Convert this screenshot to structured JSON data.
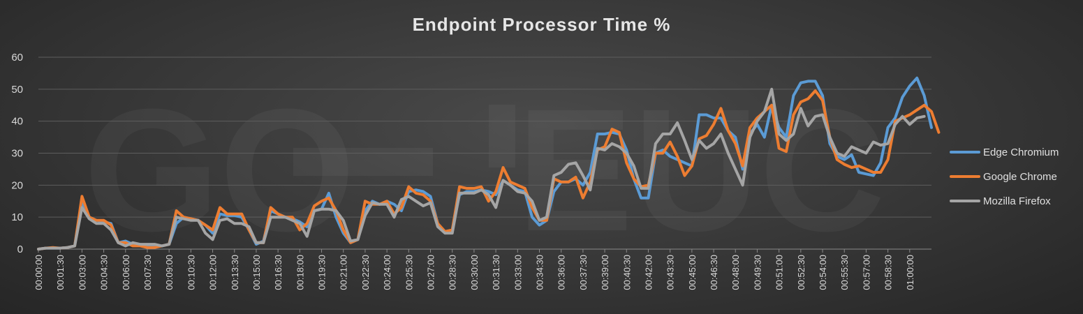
{
  "chart_data": {
    "type": "line",
    "title": "Endpoint Processor Time %",
    "xlabel": "",
    "ylabel": "",
    "ylim": [
      0,
      60
    ],
    "yticks": [
      0,
      10,
      20,
      30,
      40,
      50,
      60
    ],
    "grid": "horizontal",
    "legend_position": "right",
    "x_tick_labels": [
      "00:00:00",
      "00:01:30",
      "00:03:00",
      "00:04:30",
      "00:06:00",
      "00:07:30",
      "00:09:00",
      "00:10:30",
      "00:12:00",
      "00:13:30",
      "00:15:00",
      "00:16:30",
      "00:18:00",
      "00:19:30",
      "00:21:00",
      "00:22:30",
      "00:24:00",
      "00:25:30",
      "00:27:00",
      "00:28:30",
      "00:30:00",
      "00:31:30",
      "00:33:00",
      "00:34:30",
      "00:36:00",
      "00:37:30",
      "00:39:00",
      "00:40:30",
      "00:42:00",
      "00:43:30",
      "00:45:00",
      "00:46:30",
      "00:48:00",
      "00:49:30",
      "00:51:00",
      "00:52:30",
      "00:54:00",
      "00:55:30",
      "00:57:00",
      "00:58:30",
      "01:00:00"
    ],
    "x_interval_seconds": 30,
    "series": [
      {
        "name": "Edge Chromium",
        "color": "#5b9bd5",
        "values": [
          0,
          0.3,
          0.3,
          0.3,
          0.5,
          1,
          15,
          10,
          9,
          8.5,
          8,
          2,
          2.5,
          1.5,
          1.2,
          1,
          0.8,
          1,
          1.5,
          8,
          10,
          9.5,
          9,
          7.5,
          5,
          11,
          10.5,
          10.5,
          10,
          6,
          1.5,
          2.5,
          12,
          11,
          10,
          9.5,
          8.5,
          7,
          12,
          12.5,
          17.5,
          10,
          5,
          2,
          3,
          12,
          15,
          14,
          15,
          14,
          12,
          18,
          18.5,
          18,
          16.5,
          8,
          5,
          6,
          17,
          18,
          18,
          18.5,
          18,
          17,
          21.5,
          20,
          18.5,
          18,
          10,
          7.5,
          9,
          18,
          21,
          21,
          22,
          20,
          24,
          36,
          36,
          36.5,
          36,
          31,
          22,
          16,
          16,
          30,
          31,
          29,
          28,
          27,
          26,
          42,
          42,
          41,
          41,
          37,
          35,
          25,
          36,
          39,
          35,
          45,
          38,
          35,
          48,
          52,
          52.5,
          52.5,
          48,
          33,
          29,
          28,
          29.5,
          24,
          23.5,
          23,
          27,
          38,
          41,
          47.5,
          51,
          53.5,
          48,
          38
        ]
      },
      {
        "name": "Google Chrome",
        "color": "#ed7d31",
        "values": [
          0,
          0.3,
          0.5,
          0.3,
          0.5,
          1,
          16.5,
          10,
          9,
          9,
          7.5,
          2,
          2,
          1,
          1,
          0.5,
          0.5,
          1,
          1.5,
          12,
          10,
          9.5,
          9,
          7.5,
          6,
          13,
          11,
          11,
          11,
          6,
          2,
          2,
          13,
          11,
          10,
          10,
          6,
          8,
          13.5,
          15,
          16,
          12,
          6,
          2,
          3,
          15,
          14,
          14,
          15,
          11,
          13,
          19.5,
          17.5,
          17,
          15,
          8,
          5.5,
          6,
          19.5,
          19,
          19,
          19.5,
          15,
          18,
          25.5,
          21,
          20,
          19,
          13,
          9,
          9,
          22,
          21,
          21,
          22.5,
          16,
          21,
          31,
          32,
          37.5,
          36.5,
          27,
          22,
          19.5,
          20,
          30,
          30,
          33.5,
          29,
          23,
          26,
          34.5,
          35.5,
          39,
          44,
          37,
          33,
          26,
          38,
          41,
          43,
          45,
          31.5,
          30.5,
          42,
          46,
          47,
          49.5,
          46.5,
          35,
          28,
          26.5,
          25.5,
          26,
          25,
          24,
          24,
          28,
          40,
          41,
          42,
          43.5,
          45,
          43,
          36.5
        ]
      },
      {
        "name": "Mozilla Firefox",
        "color": "#a5a5a5",
        "values": [
          0,
          0.3,
          0.3,
          0.3,
          0.5,
          1,
          13,
          9.5,
          8,
          8,
          6,
          2,
          1,
          2,
          1.5,
          1.5,
          1.5,
          1,
          1.5,
          10,
          9.5,
          9,
          9,
          5,
          3,
          9,
          9.5,
          8,
          8,
          7,
          2,
          2,
          10,
          10,
          10,
          9,
          8,
          4,
          12,
          12.5,
          12.5,
          12,
          9,
          2.5,
          3,
          10.5,
          14.5,
          14,
          14,
          10,
          15.5,
          16.5,
          15,
          13.5,
          14.5,
          7,
          5,
          5,
          17.5,
          17.5,
          17.5,
          18.5,
          17,
          13,
          21.5,
          20,
          18,
          17.5,
          15,
          9,
          10,
          23,
          24,
          26.5,
          27,
          23,
          18.5,
          31.5,
          31,
          33,
          32,
          30,
          26,
          19,
          19,
          33,
          36,
          36,
          39.5,
          34,
          28,
          34,
          31.5,
          33,
          36,
          30,
          25,
          20,
          35,
          40,
          43,
          50,
          36,
          34,
          36,
          44,
          38.5,
          41.5,
          42,
          35,
          30,
          29,
          32,
          31,
          30,
          33.5,
          32.5,
          33,
          39,
          41.5,
          39,
          41,
          41.5
        ]
      }
    ]
  }
}
